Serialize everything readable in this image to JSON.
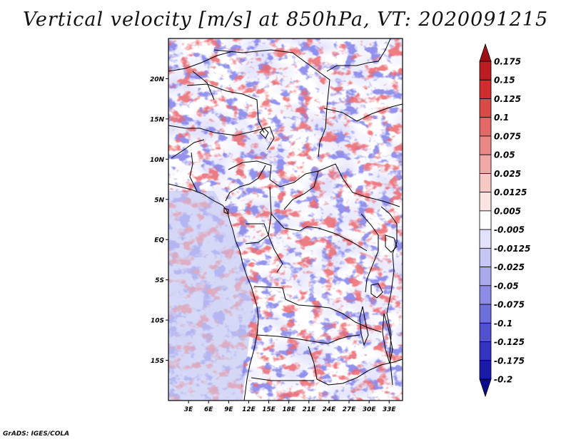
{
  "title": "Vertical velocity [m/s] at 850hPa, VT: 2020091215",
  "credit": "GrADS: IGES/COLA",
  "map": {
    "lat_labels": [
      "20N",
      "15N",
      "10N",
      "5N",
      "EQ",
      "5S",
      "10S",
      "15S"
    ],
    "lat_values": [
      20,
      15,
      10,
      5,
      0,
      -5,
      -10,
      -15
    ],
    "lon_labels": [
      "3E",
      "6E",
      "9E",
      "12E",
      "15E",
      "18E",
      "21E",
      "24E",
      "27E",
      "30E",
      "33E"
    ],
    "lon_values": [
      3,
      6,
      9,
      12,
      15,
      18,
      21,
      24,
      27,
      30,
      33
    ],
    "lon_range": [
      0,
      35
    ],
    "lat_range": [
      -20,
      25
    ]
  },
  "colorbar": {
    "labels": [
      "0.175",
      "0.15",
      "0.125",
      "0.1",
      "0.075",
      "0.05",
      "0.025",
      "0.0125",
      "0.005",
      "-0.005",
      "-0.0125",
      "-0.025",
      "-0.05",
      "-0.075",
      "-0.1",
      "-0.125",
      "-0.175",
      "-0.2"
    ],
    "colors": [
      "#a00f16",
      "#bc1c22",
      "#d02e2e",
      "#dc4a48",
      "#e26a66",
      "#e98886",
      "#f0a8a6",
      "#f6c8c6",
      "#fbe4e2",
      "#ffffff",
      "#e2e2fa",
      "#c6c6f4",
      "#a9a9ee",
      "#8c8ce6",
      "#6e6edc",
      "#5050d0",
      "#3434c0",
      "#1a1aa8",
      "#0a0a8c"
    ]
  },
  "colors": {
    "positive": "#c8242a",
    "negative": "#3c3cc8",
    "border": "#000000"
  }
}
